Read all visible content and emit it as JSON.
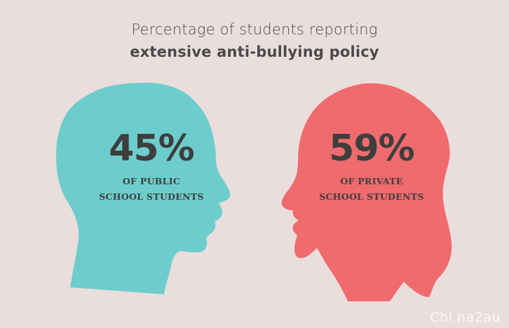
{
  "title": {
    "line1": "Percentage of students reporting",
    "line2": "extensive anti-bullying policy"
  },
  "public": {
    "percent": "45%",
    "line1": "OF PUBLIC",
    "line2": "SCHOOL STUDENTS",
    "color": "#6dcdcc"
  },
  "private": {
    "percent": "59%",
    "line1": "OF PRIVATE",
    "line2": "SCHOOL STUDENTS",
    "color": "#ef6b6d"
  },
  "watermark": "Chi na2au",
  "colors": {
    "background": "#eadedd",
    "text": "#3e3e3e"
  }
}
